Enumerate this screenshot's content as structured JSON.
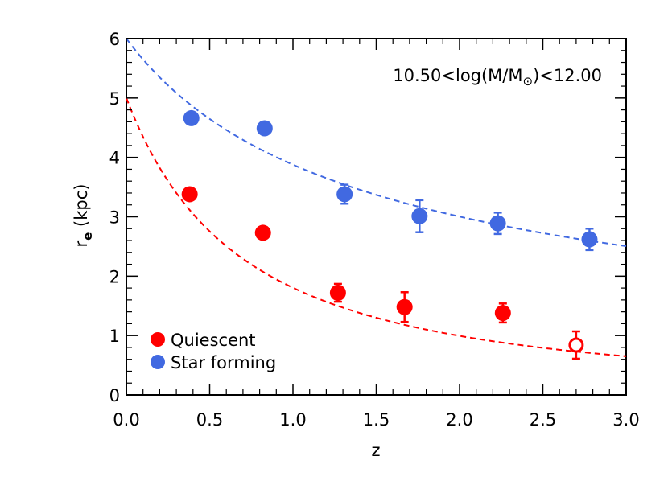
{
  "chart_data": {
    "type": "scatter",
    "annotation": {
      "pre": "10.50<log(M/M",
      "sub": "⊙",
      "post": ")<12.00"
    },
    "xlabel": "z",
    "ylabel": {
      "main": "r",
      "sub": "e",
      "rest": " (kpc)"
    },
    "xlim": [
      0.0,
      3.0
    ],
    "ylim": [
      0,
      6
    ],
    "xticks": [
      "0.0",
      "0.5",
      "1.0",
      "1.5",
      "2.0",
      "2.5",
      "3.0"
    ],
    "yticks": [
      "0",
      "1",
      "2",
      "3",
      "4",
      "5",
      "6"
    ],
    "legend": {
      "placement": "bottom-left",
      "entries": [
        {
          "label": "Quiescent",
          "color": "#ff0000"
        },
        {
          "label": "Star forming",
          "color": "#4169e1"
        }
      ]
    },
    "series": [
      {
        "name": "Quiescent",
        "color": "#ff0000",
        "points": [
          {
            "x": 0.38,
            "y": 3.38,
            "err": 0.0,
            "open": false
          },
          {
            "x": 0.82,
            "y": 2.73,
            "err": 0.0,
            "open": false
          },
          {
            "x": 1.27,
            "y": 1.72,
            "err": 0.15,
            "open": false
          },
          {
            "x": 1.67,
            "y": 1.48,
            "err": 0.25,
            "open": false
          },
          {
            "x": 2.26,
            "y": 1.38,
            "err": 0.16,
            "open": false
          },
          {
            "x": 2.7,
            "y": 0.84,
            "err": 0.23,
            "open": true
          }
        ],
        "fit": {
          "a": 5.0,
          "b": -1.47
        }
      },
      {
        "name": "Star forming",
        "color": "#4169e1",
        "points": [
          {
            "x": 0.39,
            "y": 4.66,
            "err": 0.0,
            "open": false
          },
          {
            "x": 0.83,
            "y": 4.49,
            "err": 0.0,
            "open": false
          },
          {
            "x": 1.31,
            "y": 3.38,
            "err": 0.16,
            "open": false
          },
          {
            "x": 1.76,
            "y": 3.01,
            "err": 0.27,
            "open": false
          },
          {
            "x": 2.23,
            "y": 2.89,
            "err": 0.18,
            "open": false
          },
          {
            "x": 2.78,
            "y": 2.62,
            "err": 0.18,
            "open": false
          }
        ],
        "fit": {
          "a": 6.0,
          "b": -0.63
        }
      }
    ]
  }
}
